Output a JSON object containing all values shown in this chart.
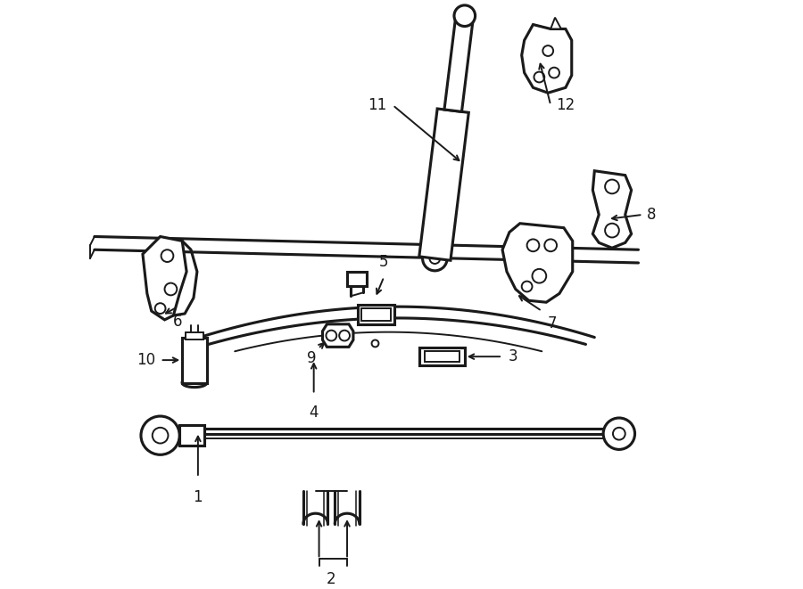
{
  "bg_color": "#ffffff",
  "line_color": "#1a1a1a",
  "lw": 1.4,
  "fig_width": 9.0,
  "fig_height": 6.61,
  "font_size": 12
}
